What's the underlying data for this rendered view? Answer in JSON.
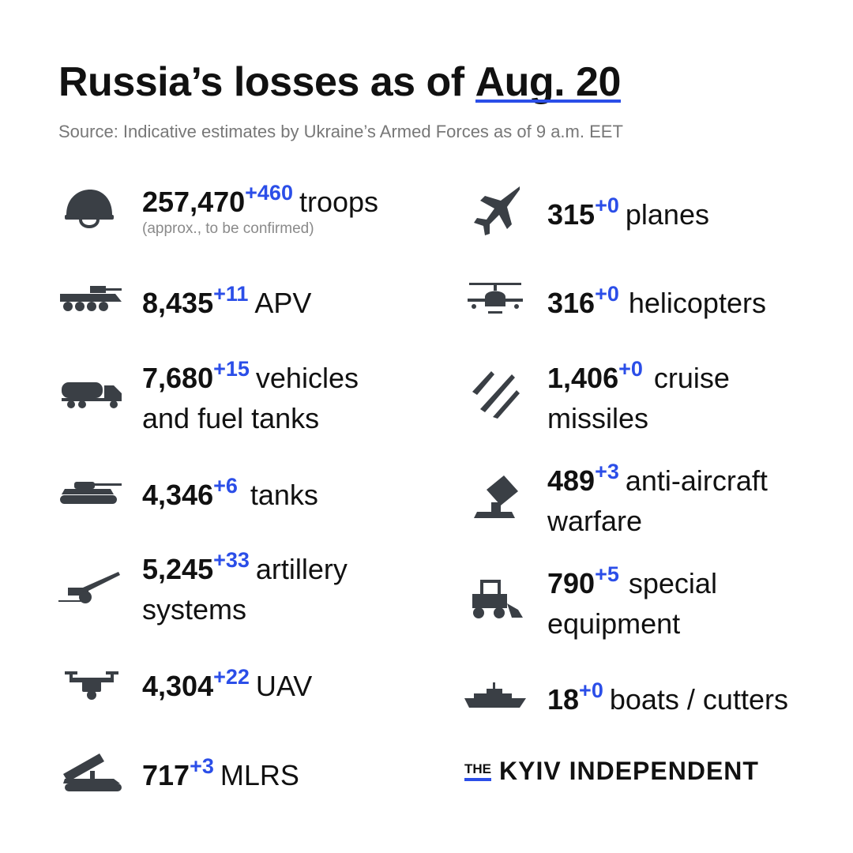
{
  "header": {
    "title_main": "Russia’s losses as of",
    "title_date": "Aug. 20",
    "source": "Source: Indicative estimates by Ukraine’s Armed Forces as of 9 a.m. EET"
  },
  "stats": {
    "troops": {
      "icon": "helmet-icon",
      "number": "257,470",
      "delta": "+460",
      "label": "troops",
      "note": "(approx., to be confirmed)"
    },
    "apv": {
      "icon": "apv-icon",
      "number": "8,435",
      "delta": "+11",
      "label": "APV"
    },
    "vehicles": {
      "icon": "fuel-truck-icon",
      "number": "7,680",
      "delta": "+15",
      "label": "vehicles",
      "label2": "and fuel tanks"
    },
    "tanks": {
      "icon": "tank-icon",
      "number": "4,346",
      "delta": "+6",
      "label": "tanks"
    },
    "artillery": {
      "icon": "artillery-icon",
      "number": "5,245",
      "delta": "+33",
      "label": "artillery",
      "label2": "systems"
    },
    "uav": {
      "icon": "drone-icon",
      "number": "4,304",
      "delta": "+22",
      "label": "UAV"
    },
    "mlrs": {
      "icon": "mlrs-icon",
      "number": "717",
      "delta": "+3",
      "label": "MLRS"
    },
    "planes": {
      "icon": "jet-icon",
      "number": "315",
      "delta": "+0",
      "label": "planes"
    },
    "helicopters": {
      "icon": "helicopter-icon",
      "number": "316",
      "delta": "+0",
      "label": "helicopters"
    },
    "missiles": {
      "icon": "missiles-icon",
      "number": "1,406",
      "delta": "+0",
      "label": "cruise",
      "label2": "missiles"
    },
    "antiair": {
      "icon": "anti-aircraft-icon",
      "number": "489",
      "delta": "+3",
      "label": "anti-aircraft",
      "label2": "warfare"
    },
    "special": {
      "icon": "loader-icon",
      "number": "790",
      "delta": "+5",
      "label": "special",
      "label2": "equipment"
    },
    "boats": {
      "icon": "warship-icon",
      "number": "18",
      "delta": "+0",
      "label": "boats / cutters"
    }
  },
  "brand": {
    "the": "THE",
    "name": "KYIV INDEPENDENT"
  },
  "colors": {
    "accent": "#2b4ee8",
    "text": "#111111",
    "icon": "#3a3f45",
    "muted": "#777777"
  }
}
